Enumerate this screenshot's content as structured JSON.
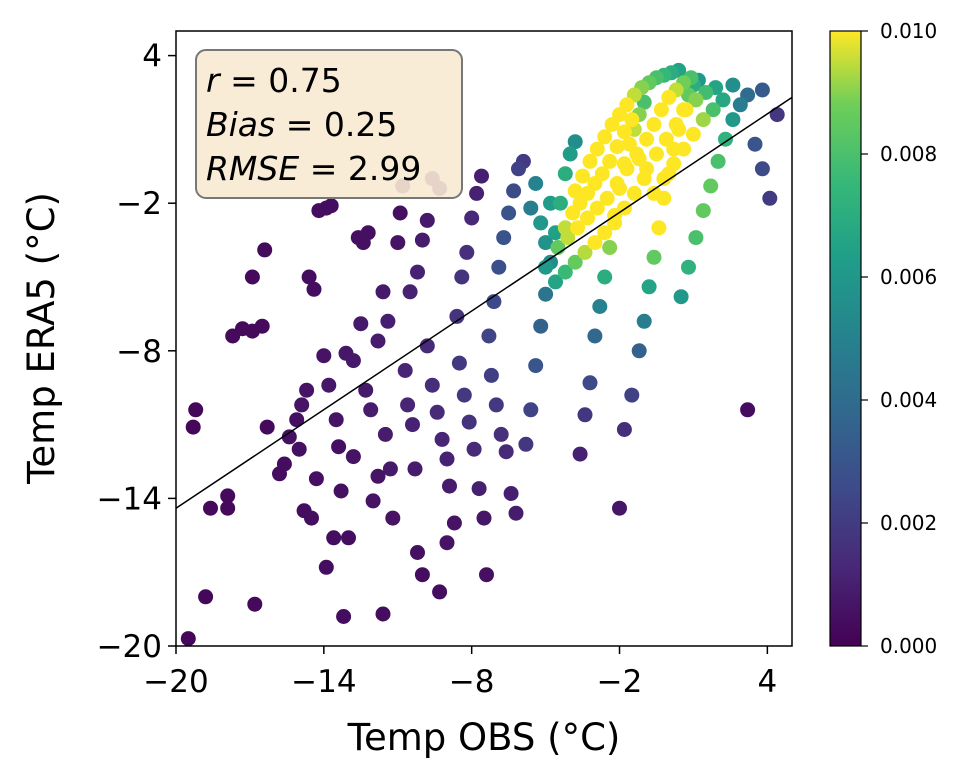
{
  "chart_data": {
    "type": "scatter",
    "title": "",
    "xlabel": "Temp OBS (°C)",
    "ylabel": "Temp ERA5 (°C)",
    "xlim": [
      -20,
      5
    ],
    "ylim": [
      -20,
      5
    ],
    "xticks": [
      "−20",
      "−14",
      "−8",
      "−2",
      "4"
    ],
    "xtick_values": [
      -20,
      -14,
      -8,
      -2,
      4
    ],
    "yticks": [
      "−20",
      "−14",
      "−8",
      "−2",
      "4"
    ],
    "ytick_values": [
      -20,
      -14,
      -8,
      -2,
      4
    ],
    "grid": false,
    "colormap": "viridis",
    "colorbar": {
      "range": [
        0,
        0.01
      ],
      "ticks": [
        "0.000",
        "0.002",
        "0.004",
        "0.006",
        "0.008",
        "0.010"
      ],
      "tick_values": [
        0,
        0.002,
        0.004,
        0.006,
        0.008,
        0.01
      ]
    },
    "stats": {
      "r_label": "r",
      "r_value": "0.75",
      "bias_label": "Bias",
      "bias_value": "0.25",
      "rmse_label": "RMSE",
      "rmse_value": "2.99"
    },
    "fit_line": {
      "x": [
        -20,
        5
      ],
      "y": [
        -14.4,
        2.3
      ]
    },
    "point_color_density_note": "color = point density",
    "points": [
      [
        -19.5,
        -19.7,
        0.0002
      ],
      [
        -19.2,
        -10.4,
        0.0002
      ],
      [
        -19.3,
        -11.1,
        0.0002
      ],
      [
        -18.8,
        -18.0,
        0.0002
      ],
      [
        -18.6,
        -14.4,
        0.0003
      ],
      [
        -17.9,
        -14.4,
        0.0003
      ],
      [
        -17.9,
        -13.9,
        0.0003
      ],
      [
        -17.7,
        -7.4,
        0.0003
      ],
      [
        -17.3,
        -7.1,
        0.0003
      ],
      [
        -16.9,
        -7.2,
        0.0003
      ],
      [
        -16.8,
        -18.3,
        0.0003
      ],
      [
        -16.5,
        -7.0,
        0.0003
      ],
      [
        -16.4,
        -3.9,
        0.0003
      ],
      [
        -16.3,
        -11.1,
        0.0003
      ],
      [
        -16.9,
        -5.0,
        0.0003
      ],
      [
        -15.8,
        -13.0,
        0.0004
      ],
      [
        -15.6,
        -12.6,
        0.0004
      ],
      [
        -15.4,
        -11.5,
        0.0005
      ],
      [
        -15.1,
        -10.8,
        0.0005
      ],
      [
        -14.9,
        -10.2,
        0.0006
      ],
      [
        -14.7,
        -9.6,
        0.0006
      ],
      [
        -15.0,
        -12.0,
        0.0005
      ],
      [
        -14.8,
        -14.5,
        0.0004
      ],
      [
        -14.5,
        -14.8,
        0.0004
      ],
      [
        -14.3,
        -13.2,
        0.0005
      ],
      [
        -14.6,
        -5.0,
        0.0004
      ],
      [
        -14.4,
        -5.5,
        0.0004
      ],
      [
        -14.2,
        -2.3,
        0.0004
      ],
      [
        -13.9,
        -2.2,
        0.0004
      ],
      [
        -13.7,
        -2.1,
        0.0004
      ],
      [
        -14.0,
        -8.2,
        0.0006
      ],
      [
        -13.8,
        -9.4,
        0.0007
      ],
      [
        -13.5,
        -10.8,
        0.0006
      ],
      [
        -13.9,
        -16.8,
        0.0004
      ],
      [
        -13.6,
        -15.6,
        0.0004
      ],
      [
        -13.4,
        -11.9,
        0.0005
      ],
      [
        -13.3,
        -13.7,
        0.0005
      ],
      [
        -13.2,
        -18.8,
        0.0004
      ],
      [
        -13.0,
        -15.6,
        0.0004
      ],
      [
        -13.1,
        -8.1,
        0.0007
      ],
      [
        -12.8,
        -8.4,
        0.0008
      ],
      [
        -12.8,
        -12.3,
        0.0006
      ],
      [
        -12.6,
        -3.4,
        0.0005
      ],
      [
        -12.4,
        -3.6,
        0.0005
      ],
      [
        -12.2,
        -3.2,
        0.0005
      ],
      [
        -12.5,
        -6.9,
        0.0008
      ],
      [
        -12.3,
        -9.6,
        0.0008
      ],
      [
        -12.1,
        -10.4,
        0.0009
      ],
      [
        -12.0,
        -14.1,
        0.0006
      ],
      [
        -11.8,
        -13.1,
        0.0006
      ],
      [
        -11.6,
        -18.7,
        0.0004
      ],
      [
        -11.8,
        -7.6,
        0.0009
      ],
      [
        -11.6,
        -5.6,
        0.0008
      ],
      [
        -11.4,
        -6.8,
        0.001
      ],
      [
        -11.5,
        -11.4,
        0.0009
      ],
      [
        -11.3,
        -12.8,
        0.0008
      ],
      [
        -11.2,
        -14.8,
        0.0006
      ],
      [
        -11.0,
        -3.6,
        0.0006
      ],
      [
        -10.9,
        -2.4,
        0.0005
      ],
      [
        -10.8,
        -1.3,
        0.0005
      ],
      [
        -10.7,
        -8.8,
        0.0012
      ],
      [
        -10.6,
        -10.2,
        0.0012
      ],
      [
        -10.4,
        -11.0,
        0.0011
      ],
      [
        -10.3,
        -12.8,
        0.0009
      ],
      [
        -10.2,
        -16.2,
        0.0005
      ],
      [
        -10.0,
        -17.1,
        0.0004
      ],
      [
        -10.5,
        -5.6,
        0.0011
      ],
      [
        -10.2,
        -4.8,
        0.0011
      ],
      [
        -10.0,
        -3.5,
        0.0009
      ],
      [
        -9.8,
        -2.7,
        0.0008
      ],
      [
        -9.6,
        -1.0,
        0.0006
      ],
      [
        -9.3,
        -1.4,
        0.0006
      ],
      [
        -9.8,
        -7.8,
        0.0014
      ],
      [
        -9.6,
        -9.4,
        0.0015
      ],
      [
        -9.4,
        -10.5,
        0.0014
      ],
      [
        -9.2,
        -11.6,
        0.0012
      ],
      [
        -9.0,
        -12.4,
        0.0011
      ],
      [
        -9.3,
        -17.8,
        0.0004
      ],
      [
        -9.0,
        -15.8,
        0.0006
      ],
      [
        -8.9,
        -13.5,
        0.0009
      ],
      [
        -8.7,
        -15.0,
        0.0006
      ],
      [
        -8.6,
        -6.6,
        0.0017
      ],
      [
        -8.4,
        -5.0,
        0.0017
      ],
      [
        -8.2,
        -4.0,
        0.0016
      ],
      [
        -8.0,
        -2.6,
        0.0013
      ],
      [
        -7.8,
        -1.6,
        0.0011
      ],
      [
        -7.6,
        -0.9,
        0.001
      ],
      [
        -8.5,
        -8.5,
        0.0019
      ],
      [
        -8.3,
        -9.8,
        0.0019
      ],
      [
        -8.1,
        -10.9,
        0.0017
      ],
      [
        -7.9,
        -12.0,
        0.0014
      ],
      [
        -7.7,
        -13.6,
        0.001
      ],
      [
        -7.5,
        -14.8,
        0.0007
      ],
      [
        -7.4,
        -17.1,
        0.0005
      ],
      [
        -7.3,
        -7.4,
        0.0023
      ],
      [
        -7.1,
        -6.0,
        0.0025
      ],
      [
        -6.9,
        -4.6,
        0.0028
      ],
      [
        -6.7,
        -3.4,
        0.0029
      ],
      [
        -6.5,
        -2.4,
        0.0029
      ],
      [
        -6.3,
        -1.5,
        0.0026
      ],
      [
        -6.1,
        -0.6,
        0.0022
      ],
      [
        -5.9,
        -0.3,
        0.002
      ],
      [
        -7.2,
        -9.0,
        0.0021
      ],
      [
        -7.0,
        -10.2,
        0.0019
      ],
      [
        -6.8,
        -11.4,
        0.0016
      ],
      [
        -6.6,
        -12.1,
        0.0014
      ],
      [
        -6.4,
        -13.8,
        0.001
      ],
      [
        -6.2,
        -14.6,
        0.0009
      ],
      [
        -5.8,
        -11.8,
        0.0018
      ],
      [
        -5.6,
        -10.4,
        0.0023
      ],
      [
        -5.4,
        -8.6,
        0.003
      ],
      [
        -5.2,
        -7.0,
        0.0036
      ],
      [
        -5.0,
        -5.7,
        0.0044
      ],
      [
        -4.8,
        -4.4,
        0.0054
      ],
      [
        -4.6,
        -3.2,
        0.0064
      ],
      [
        -4.4,
        -2.0,
        0.007
      ],
      [
        -4.2,
        -0.8,
        0.007
      ],
      [
        -4.0,
        0.0,
        0.0062
      ],
      [
        -3.8,
        0.5,
        0.0055
      ],
      [
        -3.6,
        -12.2,
        0.0011
      ],
      [
        -3.4,
        -10.6,
        0.0018
      ],
      [
        -3.2,
        -9.3,
        0.0025
      ],
      [
        -3.0,
        -7.4,
        0.0038
      ],
      [
        -2.8,
        -6.2,
        0.005
      ],
      [
        -2.6,
        -5.0,
        0.007
      ],
      [
        -2.4,
        -3.8,
        0.009
      ],
      [
        -2.2,
        -2.5,
        0.01
      ],
      [
        -2.0,
        -1.4,
        0.01
      ],
      [
        -1.8,
        -0.4,
        0.01
      ],
      [
        -1.6,
        0.4,
        0.01
      ],
      [
        -1.4,
        1.0,
        0.0095
      ],
      [
        -1.2,
        1.6,
        0.009
      ],
      [
        -1.0,
        2.1,
        0.008
      ],
      [
        -2.0,
        -14.4,
        0.0007
      ],
      [
        -1.8,
        -11.2,
        0.0015
      ],
      [
        -1.5,
        -9.8,
        0.0022
      ],
      [
        -1.2,
        -8.0,
        0.0035
      ],
      [
        -1.0,
        -6.8,
        0.0048
      ],
      [
        -0.8,
        -5.4,
        0.0066
      ],
      [
        -0.6,
        -4.2,
        0.0085
      ],
      [
        -0.4,
        -3.0,
        0.01
      ],
      [
        -0.2,
        -1.8,
        0.01
      ],
      [
        0.0,
        -0.8,
        0.01
      ],
      [
        0.2,
        0.2,
        0.01
      ],
      [
        0.4,
        1.0,
        0.01
      ],
      [
        0.6,
        1.8,
        0.01
      ],
      [
        0.8,
        2.4,
        0.0085
      ],
      [
        1.0,
        2.8,
        0.007
      ],
      [
        1.2,
        3.0,
        0.006
      ],
      [
        0.5,
        -5.8,
        0.006
      ],
      [
        0.8,
        -4.6,
        0.0072
      ],
      [
        1.1,
        -3.4,
        0.008
      ],
      [
        1.4,
        -2.3,
        0.0085
      ],
      [
        1.7,
        -1.3,
        0.0085
      ],
      [
        2.0,
        -0.3,
        0.008
      ],
      [
        2.3,
        0.6,
        0.0072
      ],
      [
        2.6,
        1.4,
        0.006
      ],
      [
        2.9,
        2.0,
        0.0048
      ],
      [
        3.2,
        2.4,
        0.004
      ],
      [
        3.5,
        0.4,
        0.003
      ],
      [
        3.8,
        -0.6,
        0.0026
      ],
      [
        4.1,
        -1.8,
        0.002
      ],
      [
        4.4,
        1.6,
        0.0018
      ],
      [
        3.8,
        2.6,
        0.0032
      ],
      [
        3.2,
        -10.4,
        0.0004
      ],
      [
        -3.8,
        -1.5,
        0.01
      ],
      [
        -3.5,
        -0.9,
        0.01
      ],
      [
        -3.2,
        -0.3,
        0.01
      ],
      [
        -2.9,
        0.2,
        0.01
      ],
      [
        -2.6,
        0.7,
        0.01
      ],
      [
        -2.3,
        1.2,
        0.01
      ],
      [
        -2.0,
        1.6,
        0.01
      ],
      [
        -1.7,
        2.0,
        0.01
      ],
      [
        -1.4,
        2.4,
        0.0095
      ],
      [
        -1.1,
        2.7,
        0.009
      ],
      [
        -0.8,
        2.9,
        0.0085
      ],
      [
        -0.5,
        3.1,
        0.008
      ],
      [
        -0.2,
        3.2,
        0.0075
      ],
      [
        0.1,
        3.3,
        0.007
      ],
      [
        0.4,
        3.4,
        0.0065
      ],
      [
        -4.2,
        -3.0,
        0.0095
      ],
      [
        -3.9,
        -2.4,
        0.01
      ],
      [
        -3.6,
        -2.0,
        0.01
      ],
      [
        -3.3,
        -1.6,
        0.01
      ],
      [
        -3.0,
        -1.2,
        0.01
      ],
      [
        -2.7,
        -0.8,
        0.01
      ],
      [
        -2.4,
        -0.3,
        0.01
      ],
      [
        -2.1,
        0.3,
        0.01
      ],
      [
        -1.8,
        0.9,
        0.01
      ],
      [
        -1.5,
        1.4,
        0.01
      ],
      [
        -1.2,
        -0.2,
        0.01
      ],
      [
        -0.9,
        0.6,
        0.01
      ],
      [
        -0.6,
        1.2,
        0.01
      ],
      [
        -0.3,
        1.8,
        0.01
      ],
      [
        0.0,
        2.3,
        0.01
      ],
      [
        0.3,
        2.6,
        0.0095
      ],
      [
        0.6,
        2.9,
        0.0088
      ],
      [
        0.9,
        3.1,
        0.008
      ],
      [
        -4.5,
        -3.8,
        0.0085
      ],
      [
        -4.1,
        -3.4,
        0.0095
      ],
      [
        -3.7,
        -3.0,
        0.01
      ],
      [
        -3.3,
        -2.6,
        0.01
      ],
      [
        -2.9,
        -2.2,
        0.01
      ],
      [
        -2.5,
        -1.8,
        0.01
      ],
      [
        -2.1,
        -1.2,
        0.01
      ],
      [
        -1.7,
        -0.6,
        0.01
      ],
      [
        -1.3,
        0.0,
        0.01
      ],
      [
        -0.9,
        -0.6,
        0.01
      ],
      [
        -0.5,
        0.0,
        0.01
      ],
      [
        -0.1,
        0.6,
        0.01
      ],
      [
        0.3,
        1.2,
        0.01
      ],
      [
        0.7,
        1.8,
        0.01
      ],
      [
        1.1,
        2.2,
        0.009
      ],
      [
        1.5,
        2.5,
        0.0078
      ],
      [
        1.9,
        2.7,
        0.0066
      ],
      [
        -5.2,
        -2.8,
        0.006
      ],
      [
        -5.0,
        -3.6,
        0.0058
      ],
      [
        -4.8,
        -2.0,
        0.0062
      ],
      [
        -5.4,
        -1.2,
        0.005
      ],
      [
        -5.6,
        -2.2,
        0.0048
      ],
      [
        -5.0,
        -4.6,
        0.006
      ],
      [
        -4.6,
        -5.2,
        0.0066
      ],
      [
        -4.2,
        -4.8,
        0.0076
      ],
      [
        -3.8,
        -4.4,
        0.0086
      ],
      [
        -3.4,
        -4.0,
        0.0094
      ],
      [
        -3.0,
        -3.6,
        0.01
      ],
      [
        -2.6,
        -3.2,
        0.01
      ],
      [
        -2.2,
        -2.8,
        0.01
      ],
      [
        -1.8,
        -2.2,
        0.01
      ],
      [
        -1.4,
        -1.6,
        0.01
      ],
      [
        -1.0,
        -1.0,
        0.01
      ],
      [
        -0.6,
        -1.6,
        0.01
      ],
      [
        -0.2,
        -1.0,
        0.01
      ],
      [
        0.2,
        -0.4,
        0.01
      ],
      [
        0.6,
        0.2,
        0.01
      ],
      [
        1.0,
        0.8,
        0.01
      ],
      [
        1.4,
        1.4,
        0.0092
      ],
      [
        1.8,
        1.8,
        0.008
      ],
      [
        2.2,
        2.2,
        0.0068
      ],
      [
        2.6,
        2.8,
        0.0056
      ]
    ]
  }
}
